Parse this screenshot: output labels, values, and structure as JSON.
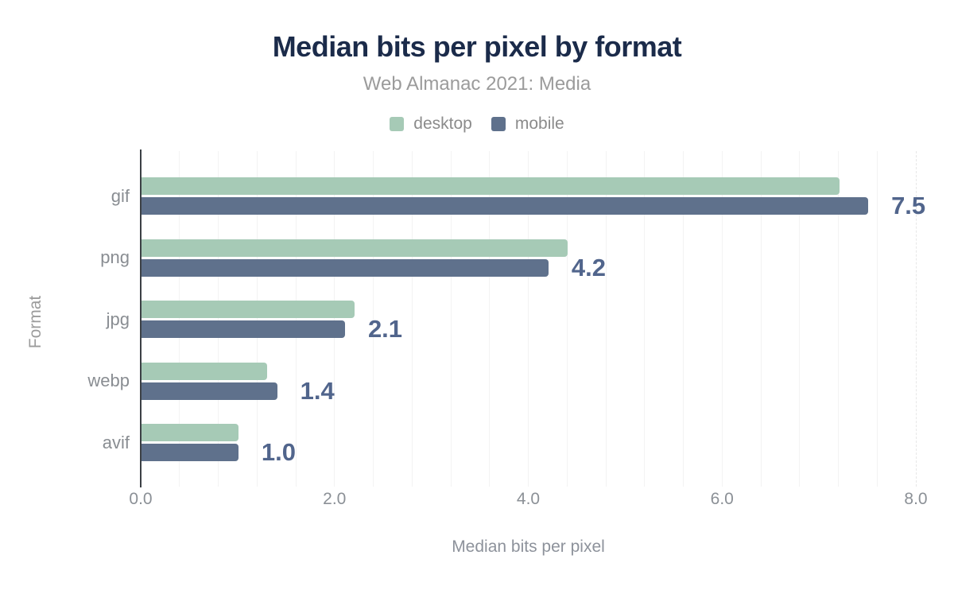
{
  "chart_data": {
    "type": "bar",
    "orientation": "horizontal",
    "title": "Median bits per pixel by format",
    "subtitle": "Web Almanac 2021: Media",
    "xlabel": "Median bits per pixel",
    "ylabel": "Format",
    "categories": [
      "gif",
      "png",
      "jpg",
      "webp",
      "avif"
    ],
    "series": [
      {
        "name": "desktop",
        "color": "#a6cab6",
        "values": [
          7.2,
          4.4,
          2.2,
          1.3,
          1.0
        ]
      },
      {
        "name": "mobile",
        "color": "#5f718c",
        "values": [
          7.5,
          4.2,
          2.1,
          1.4,
          1.0
        ]
      }
    ],
    "value_labels": {
      "attached_to_series": "mobile",
      "texts": [
        "7.5",
        "4.2",
        "2.1",
        "1.4",
        "1.0"
      ],
      "color": "#51658c"
    },
    "xlim": [
      0,
      8
    ],
    "xticks": [
      {
        "value": 0,
        "label": "0.0"
      },
      {
        "value": 2,
        "label": "2.0"
      },
      {
        "value": 4,
        "label": "4.0"
      },
      {
        "value": 6,
        "label": "6.0"
      },
      {
        "value": 8,
        "label": "8.0"
      }
    ],
    "minor_gridline_step": 0.4,
    "grid": "vertical-minor",
    "legend_position": "top",
    "colors": {
      "title": "#1b2b4a",
      "subtitle": "#9b9b9b",
      "axis_text": "#8b9096",
      "axis_line": "#3b4045",
      "gridline": "#f3f3f3",
      "end_gridline_dashed": "#e7e7e7"
    }
  }
}
